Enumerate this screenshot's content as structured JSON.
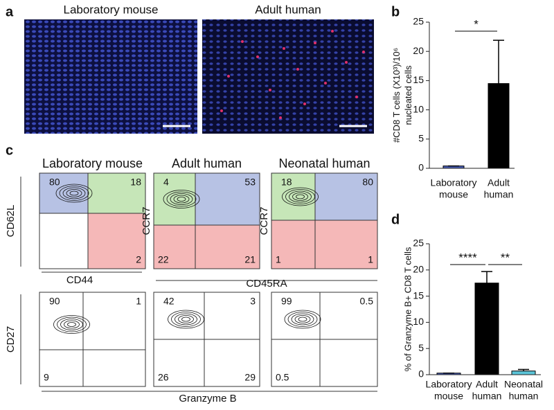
{
  "panel_labels": [
    "a",
    "b",
    "c",
    "d"
  ],
  "panel_a": {
    "titles": [
      "Laboratory mouse",
      "Adult human"
    ]
  },
  "panel_c": {
    "column_titles": [
      "Laboratory mouse",
      "Adult human",
      "Neonatal human"
    ],
    "row1_y_labels": [
      "CD62L",
      "CCR7",
      "CCR7"
    ],
    "row1_x_labels": [
      "CD44",
      "CD45RA"
    ],
    "row1_quadrants": [
      {
        "upper_left": 80,
        "upper_right": 18,
        "lower_right": 2
      },
      {
        "upper_left": 4,
        "upper_right": 53,
        "lower_left": 22,
        "lower_right": 21
      },
      {
        "upper_left": 18,
        "upper_right": 80,
        "lower_left": 1,
        "lower_right": 1
      }
    ],
    "row2_y_label": "CD27",
    "row2_x_label": "Granzyme B",
    "row2_quadrants": [
      {
        "upper_left": 90,
        "upper_right": 1,
        "lower_left": 9
      },
      {
        "upper_left": 42,
        "upper_right": 3,
        "lower_left": 26,
        "lower_right": 29
      },
      {
        "upper_left": 99,
        "upper_right": 0.5,
        "lower_left": 0.5
      }
    ]
  },
  "chart_data": [
    {
      "type": "bar",
      "ylabel": [
        "#CD8 T cells (X10³)/10⁶",
        "nucleated cells"
      ],
      "categories": [
        [
          "Laboratory",
          "mouse"
        ],
        [
          "Adult",
          "human"
        ]
      ],
      "values": [
        0.4,
        14.5
      ],
      "errors": [
        0,
        7.4
      ],
      "colors": [
        "#4a5fb5",
        "#000000"
      ],
      "ylim": [
        0,
        25
      ],
      "yticks": [
        0,
        5,
        10,
        15,
        20,
        25
      ],
      "annotations": [
        "*"
      ]
    },
    {
      "type": "bar",
      "ylabel": [
        "% of Granzyme B+ CD8 T cells"
      ],
      "categories": [
        [
          "Laboratory",
          "mouse"
        ],
        [
          "Adult",
          "human"
        ],
        [
          "Neonatal",
          "human"
        ]
      ],
      "values": [
        0.3,
        17.5,
        0.7
      ],
      "errors": [
        0,
        2.2,
        0.3
      ],
      "colors": [
        "#4a5fb5",
        "#000000",
        "#5bc4d8"
      ],
      "ylim": [
        0,
        25
      ],
      "yticks": [
        0,
        5,
        10,
        15,
        20,
        25
      ],
      "annotations": [
        "****",
        "**"
      ]
    }
  ]
}
